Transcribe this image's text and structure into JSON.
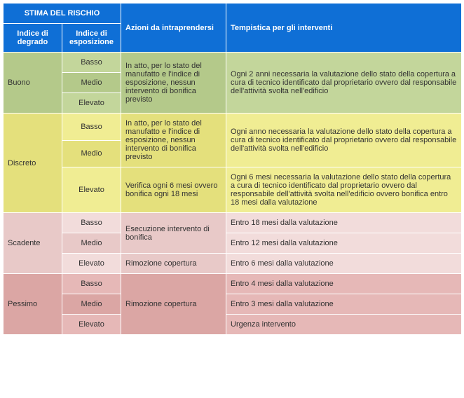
{
  "header": {
    "stima": "STIMA DEL RISCHIO",
    "degrado": "Indice di degrado",
    "esposizione": "Indice di esposizione",
    "azioni": "Azioni da intraprendersi",
    "tempistica": "Tempistica per gli interventi"
  },
  "levels": {
    "basso": "Basso",
    "medio": "Medio",
    "elevato": "Elevato"
  },
  "buono": {
    "label": "Buono",
    "azioni": "In atto, per lo stato del manufatto e l'indice di esposizione, nessun intervento di bonifica previsto",
    "tempi": "Ogni 2 anni necessaria la valutazione dello stato della copertura a cura di tecnico identificato dal proprietario ovvero dal responsabile dell'attività svolta nell'edificio"
  },
  "discreto": {
    "label": "Discreto",
    "azioni1": "In atto, per lo stato del manufatto e l'indice di esposizione, nessun intervento di bonifica previsto",
    "tempi1": "Ogni anno necessaria la valutazione dello stato della copertura a cura di tecnico identificato dal proprietario ovvero dal responsabile dell'attività svolta nell'edificio",
    "azioni2": "Verifica ogni 6 mesi ovvero bonifica ogni 18 mesi",
    "tempi2": "Ogni 6 mesi necessaria la valutazione dello stato della copertura a cura di tecnico identificato dal proprietario ovvero dal responsabile dell'attività svolta nell'edificio ovvero bonifica entro 18 mesi dalla valutazione"
  },
  "scadente": {
    "label": "Scadente",
    "azioni1": "Esecuzione intervento di bonifica",
    "tempi_b": "Entro 18 mesi dalla valutazione",
    "tempi_m": "Entro 12 mesi dalla valutazione",
    "azioni2": "Rimozione copertura",
    "tempi_e": "Entro 6 mesi dalla valutazione"
  },
  "pessimo": {
    "label": "Pessimo",
    "azioni": "Rimozione copertura",
    "tempi_b": "Entro 4 mesi dalla valutazione",
    "tempi_m": "Entro 3 mesi dalla valutazione",
    "tempi_e": "Urgenza intervento"
  }
}
